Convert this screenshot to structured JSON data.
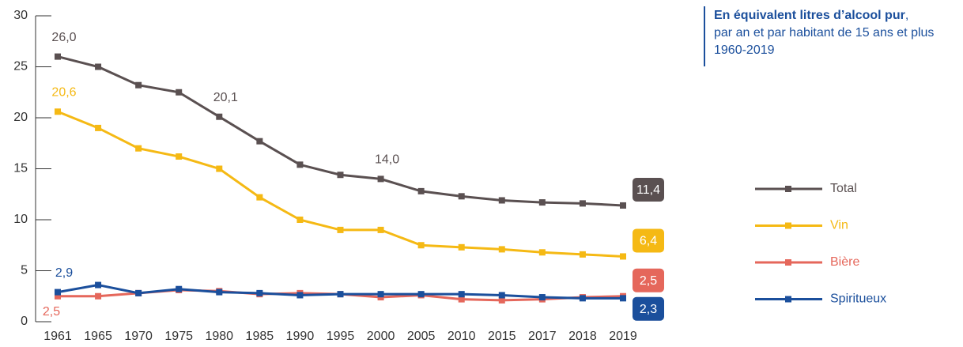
{
  "chart_data": {
    "type": "line",
    "note": {
      "bold": "En équivalent litres d’alcool pur",
      "rest": ",",
      "lines": [
        "par an et par habitant de 15 ans et plus",
        "1960-2019"
      ]
    },
    "categories": [
      "1961",
      "1965",
      "1970",
      "1975",
      "1980",
      "1985",
      "1990",
      "1995",
      "2000",
      "2005",
      "2010",
      "2015",
      "2017",
      "2018",
      "2019"
    ],
    "ylim": [
      0,
      30
    ],
    "yticks": [
      0,
      5,
      10,
      15,
      20,
      25,
      30
    ],
    "series": [
      {
        "name": "Total",
        "color": "#5a5051",
        "values": [
          26.0,
          25.0,
          23.2,
          22.5,
          20.1,
          17.7,
          15.4,
          14.4,
          14.0,
          12.8,
          12.3,
          11.9,
          11.7,
          11.6,
          11.4
        ],
        "value_labels": [
          "26,0",
          null,
          null,
          null,
          "20,1",
          null,
          null,
          null,
          "14,0",
          null,
          null,
          null,
          null,
          null,
          "11,4"
        ]
      },
      {
        "name": "Vin",
        "color": "#f5b914",
        "values": [
          20.6,
          19.0,
          17.0,
          16.2,
          15.0,
          12.2,
          10.0,
          9.0,
          9.0,
          7.5,
          7.3,
          7.1,
          6.8,
          6.6,
          6.4
        ],
        "value_labels": [
          "20,6",
          null,
          null,
          null,
          null,
          null,
          null,
          null,
          null,
          null,
          null,
          null,
          null,
          null,
          "6,4"
        ]
      },
      {
        "name": "Bière",
        "color": "#e5675b",
        "values": [
          2.5,
          2.5,
          2.8,
          3.1,
          3.0,
          2.7,
          2.8,
          2.7,
          2.4,
          2.6,
          2.2,
          2.1,
          2.2,
          2.4,
          2.5
        ],
        "value_labels": [
          "2,5",
          null,
          null,
          null,
          null,
          null,
          null,
          null,
          null,
          null,
          null,
          null,
          null,
          null,
          "2,5"
        ]
      },
      {
        "name": "Spiritueux",
        "color": "#1b4f9c",
        "values": [
          2.9,
          3.6,
          2.8,
          3.2,
          2.9,
          2.8,
          2.6,
          2.7,
          2.7,
          2.7,
          2.7,
          2.6,
          2.4,
          2.3,
          2.3
        ],
        "value_labels": [
          "2,9",
          null,
          null,
          null,
          null,
          null,
          null,
          null,
          null,
          null,
          null,
          null,
          null,
          null,
          "2,3"
        ]
      }
    ]
  }
}
